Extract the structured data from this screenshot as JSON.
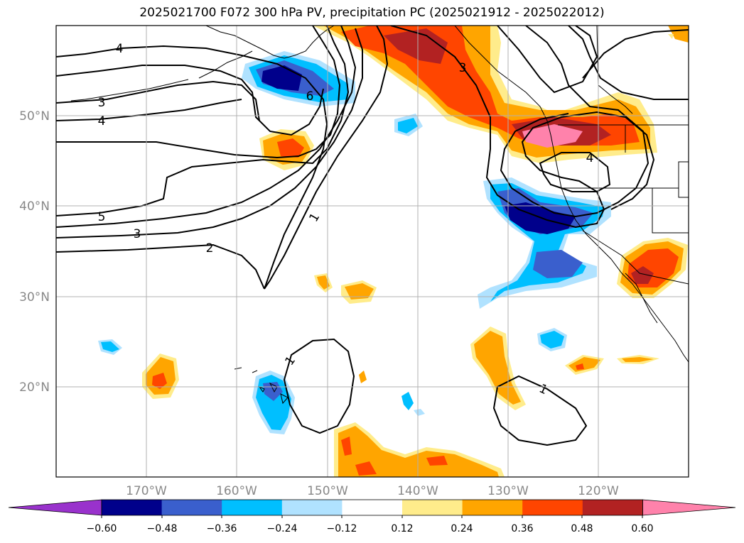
{
  "title": "2025021700 F072 300 hPa PV, precipitation PC (2025021912 - 2025022012)",
  "lat_labels": [
    "50°N",
    "40°N",
    "30°N",
    "20°N"
  ],
  "lon_labels": [
    "170°W",
    "160°W",
    "150°W",
    "140°W",
    "130°W",
    "120°W"
  ],
  "contour_labels": [
    "4",
    "3",
    "4",
    "5",
    "3",
    "2",
    "1",
    "6",
    "3",
    "4",
    "1",
    "1"
  ],
  "colorbar": {
    "ticks": [
      "−0.60",
      "−0.48",
      "−0.36",
      "−0.24",
      "−0.12",
      "0.12",
      "0.24",
      "0.36",
      "0.48",
      "0.60"
    ],
    "colors": [
      "#9932cc",
      "#00008b",
      "#3a5fcd",
      "#00bfff",
      "#b0e2ff",
      "#ffffff",
      "#ffec8b",
      "#ffa500",
      "#ff4500",
      "#b22222",
      "#ff82ab"
    ]
  },
  "map": {
    "lat_range": [
      10,
      60
    ],
    "lon_range": [
      -180,
      -110
    ],
    "grid": true
  }
}
